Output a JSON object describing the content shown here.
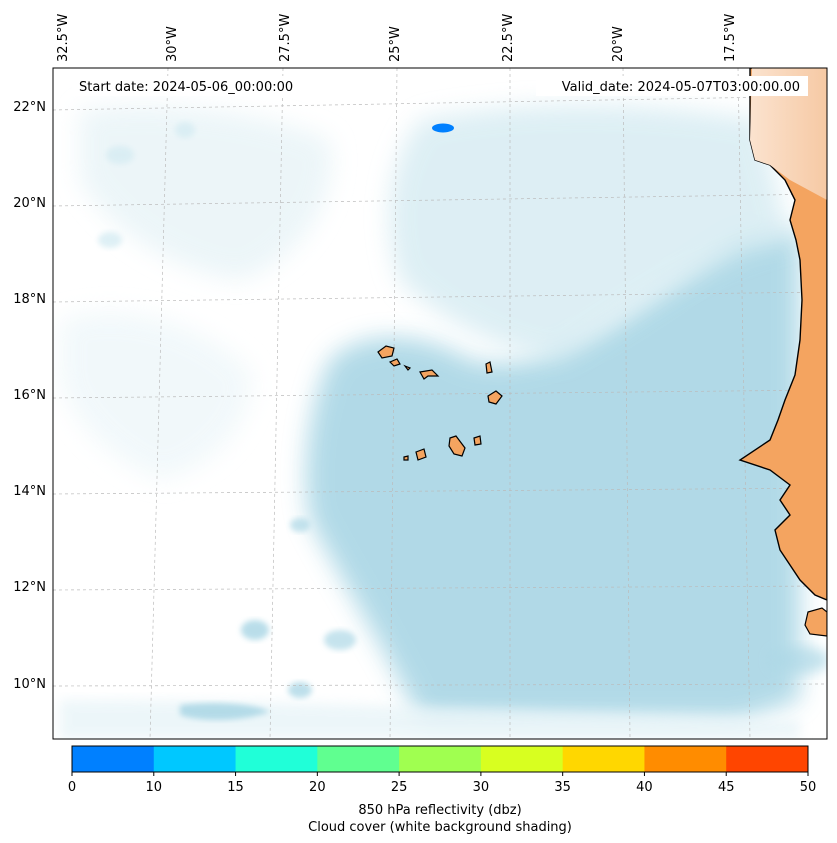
{
  "map": {
    "start_label": "Start date: 2024-05-06_00:00:00",
    "valid_label": "Valid_date: 2024-05-07T03:00:00.00",
    "lon_labels": [
      "32.5°W",
      "30°W",
      "27.5°W",
      "25°W",
      "22.5°W",
      "20°W",
      "17.5°W"
    ],
    "lat_labels": [
      "22°N",
      "20°N",
      "18°N",
      "16°N",
      "14°N",
      "12°N",
      "10°N"
    ],
    "extent": {
      "lon": [
        -32.5,
        -15.6
      ],
      "lat": [
        8.9,
        22.8
      ]
    },
    "colors": {
      "land": "#f4a460",
      "cloud": "#add8e6",
      "coast": "#000000",
      "reflectivity_cell": "#0080ff"
    }
  },
  "colorbar": {
    "ticks": [
      "0",
      "10",
      "15",
      "20",
      "25",
      "30",
      "35",
      "40",
      "45",
      "50"
    ],
    "colors": [
      "#0080ff",
      "#00c8ff",
      "#20ffd8",
      "#60ff90",
      "#a0ff50",
      "#d8ff20",
      "#ffd700",
      "#ff8c00",
      "#ff4500"
    ],
    "label_line1": "850 hPa reflectivity (dbz)",
    "label_line2": "Cloud cover (white background shading)"
  }
}
